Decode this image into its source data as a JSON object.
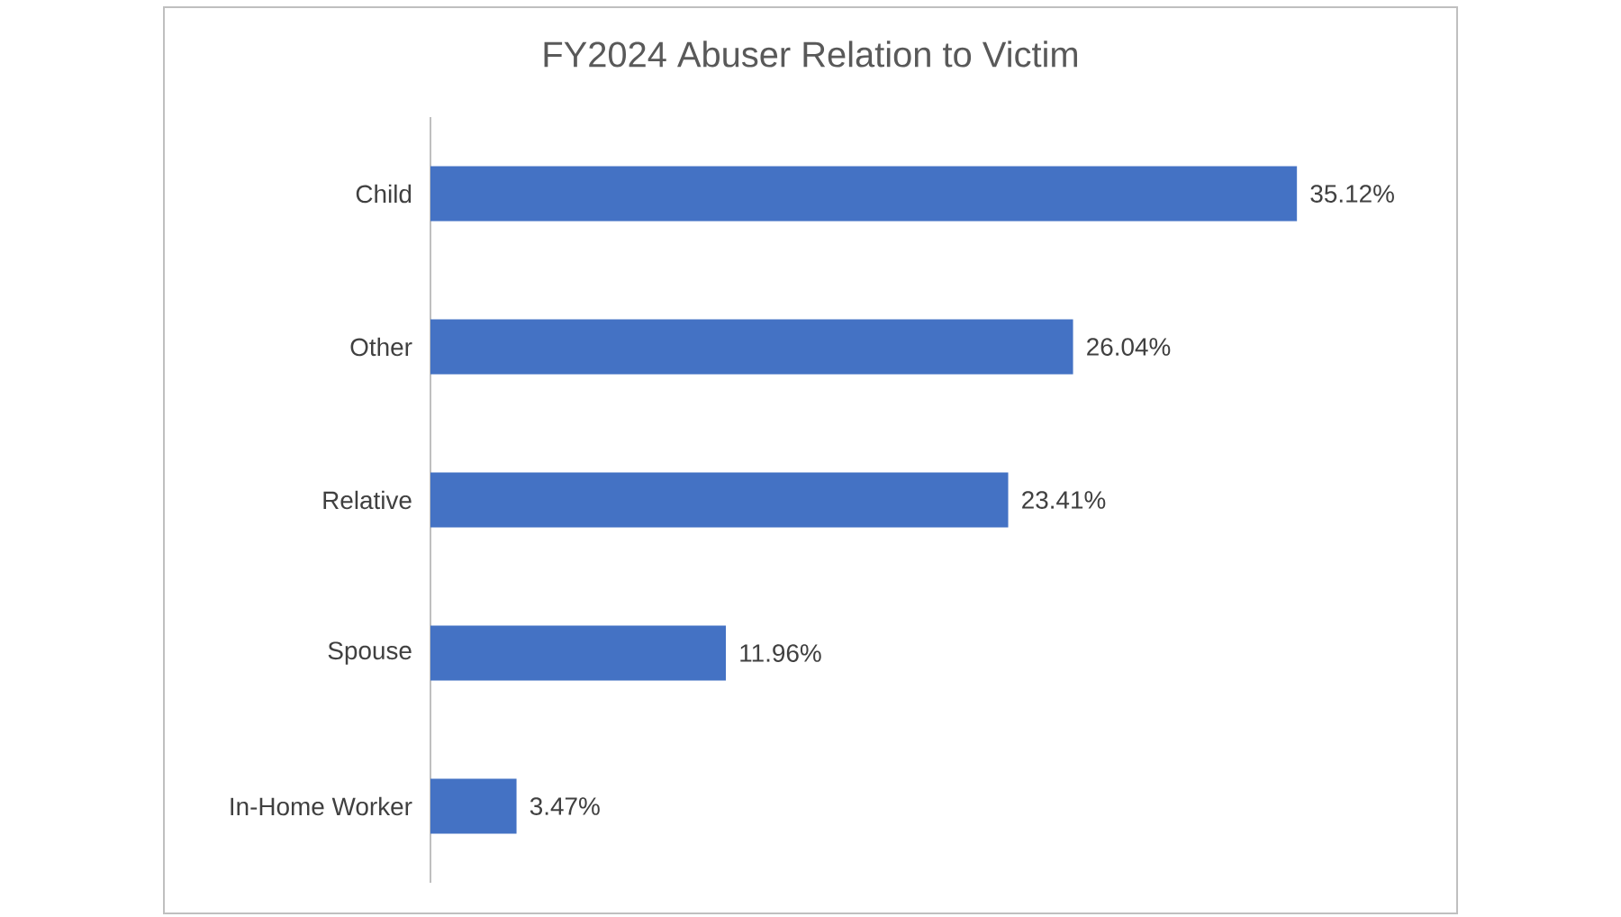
{
  "chart_data": {
    "type": "bar",
    "orientation": "horizontal",
    "title": "FY2024 Abuser Relation to Victim",
    "categories": [
      "Child",
      "Other",
      "Relative",
      "Spouse",
      "In-Home Worker"
    ],
    "values": [
      35.12,
      26.04,
      23.41,
      11.96,
      3.47
    ],
    "value_labels": [
      "35.12%",
      "26.04%",
      "23.41%",
      "11.96%",
      "3.47%"
    ],
    "color": "#4472c4"
  }
}
